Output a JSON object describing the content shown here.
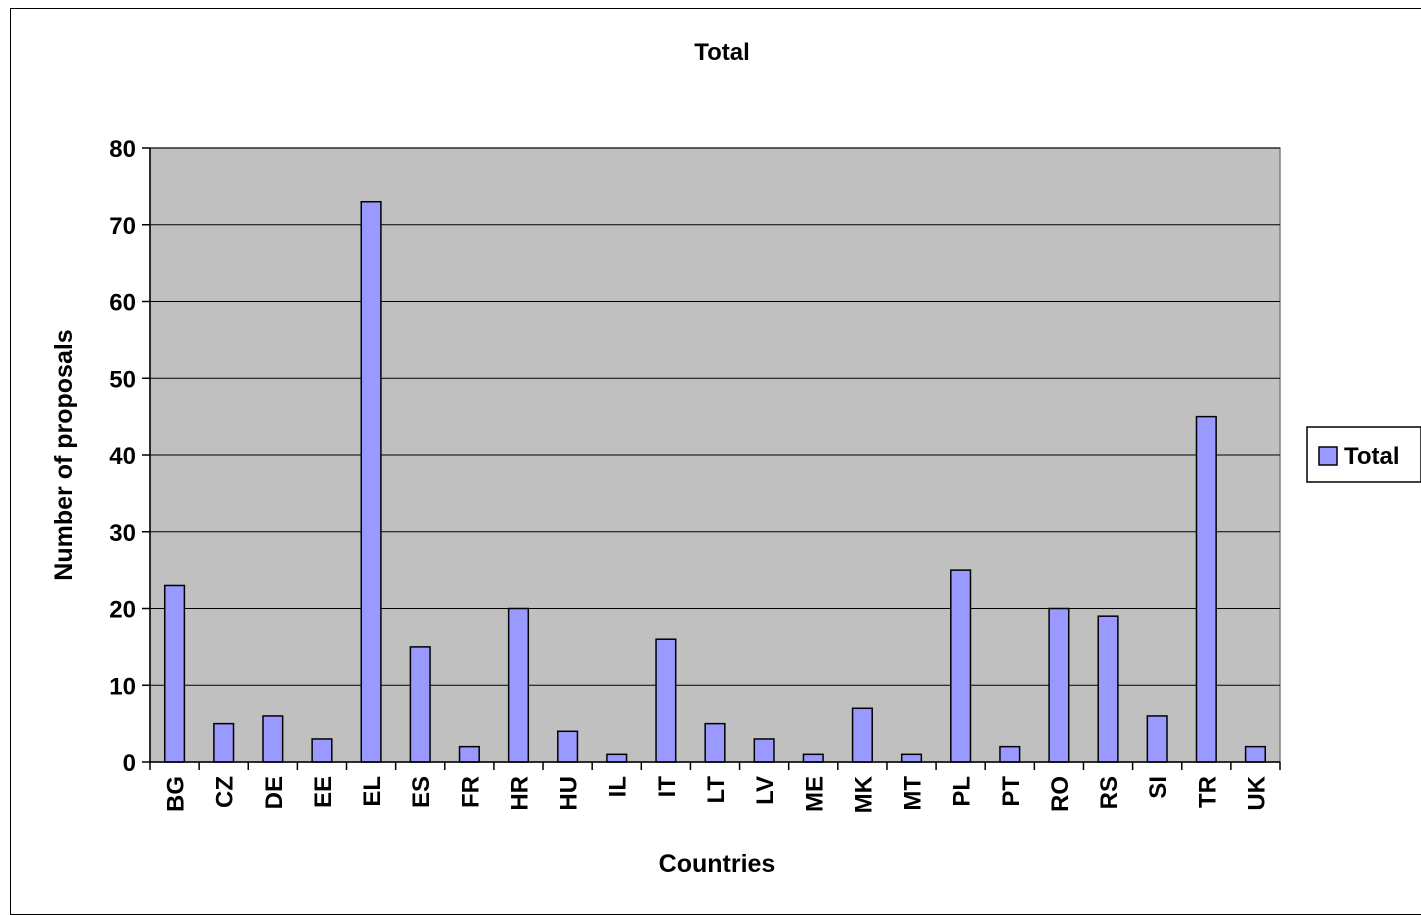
{
  "chart_data": {
    "type": "bar",
    "title": "Total",
    "xlabel": "Countries",
    "ylabel": "Number of proposals",
    "categories": [
      "BG",
      "CZ",
      "DE",
      "EE",
      "EL",
      "ES",
      "FR",
      "HR",
      "HU",
      "IL",
      "IT",
      "LT",
      "LV",
      "ME",
      "MK",
      "MT",
      "PL",
      "PT",
      "RO",
      "RS",
      "SI",
      "TR",
      "UK"
    ],
    "series": [
      {
        "name": "Total",
        "values": [
          23,
          5,
          6,
          3,
          73,
          15,
          2,
          20,
          4,
          1,
          16,
          5,
          3,
          1,
          7,
          1,
          25,
          2,
          20,
          19,
          6,
          45,
          2
        ]
      }
    ],
    "ylim": [
      0,
      80
    ],
    "yticks": [
      0,
      10,
      20,
      30,
      40,
      50,
      60,
      70,
      80
    ],
    "grid": true,
    "legend_position": "right",
    "colors": {
      "bar_fill": "#9999ff",
      "plot_background": "#c0c0c0",
      "grid": "#000000"
    }
  }
}
